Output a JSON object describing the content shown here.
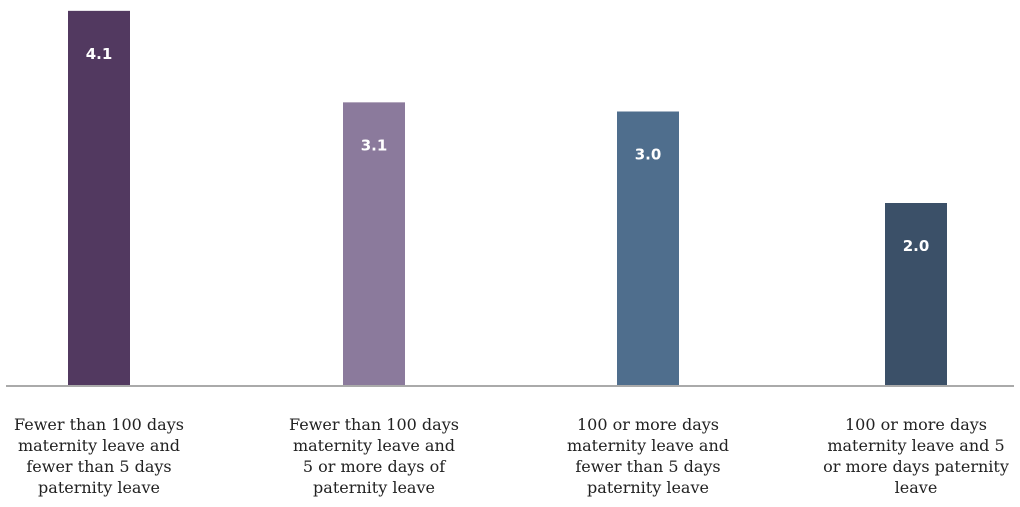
{
  "chart_data": {
    "type": "bar",
    "title": "",
    "xlabel": "",
    "ylabel": "",
    "ylim": [
      0,
      4.5
    ],
    "grid": false,
    "legend": "none",
    "categories": [
      [
        "Fewer than 100 days",
        "maternity leave and",
        "fewer than 5 days",
        "paternity leave"
      ],
      [
        "Fewer than 100 days",
        "maternity leave and",
        "5 or more days of",
        "paternity leave"
      ],
      [
        "100 or more days",
        "maternity leave and",
        "fewer than 5 days",
        "paternity leave"
      ],
      [
        "100 or more days",
        "maternity leave and 5",
        "or more days paternity",
        "leave"
      ]
    ],
    "values": [
      4.1,
      3.1,
      3.0,
      2.0
    ],
    "value_labels": [
      "4.1",
      "3.1",
      "3.0",
      "2.0"
    ],
    "colors": [
      "#523960",
      "#8b7a9c",
      "#4f6e8d",
      "#3b5068"
    ],
    "axis_color": "#aaaaaa"
  }
}
